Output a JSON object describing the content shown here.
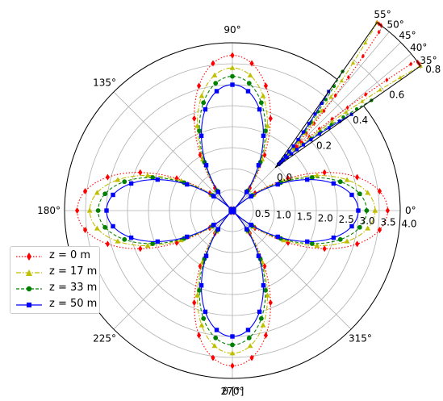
{
  "chart_data": {
    "type": "line",
    "subtype": "polar",
    "xlabel": "θ [°]",
    "theta_ticks": [
      "0°",
      "45°",
      "90°",
      "135°",
      "180°",
      "225°",
      "270°",
      "315°"
    ],
    "r_ticks": [
      "0.0",
      "0.5",
      "1.0",
      "1.5",
      "2.0",
      "2.5",
      "3.0",
      "3.5",
      "4.0"
    ],
    "rlim": [
      0,
      4.0
    ],
    "grid": true,
    "legend_position": "lower-left",
    "series": [
      {
        "name": "z = 0 m",
        "color": "#ff0000",
        "linestyle": "dotted",
        "marker": "diamond",
        "peak": 3.7,
        "mean": 0.05
      },
      {
        "name": "z = 17 m",
        "color": "#bfbf00",
        "linestyle": "dashdot",
        "marker": "triangle",
        "peak": 3.4,
        "mean": 0.05
      },
      {
        "name": "z = 33 m",
        "color": "#008000",
        "linestyle": "dashed",
        "marker": "circle",
        "peak": 3.2,
        "mean": 0.05
      },
      {
        "name": "z = 50 m",
        "color": "#0000ff",
        "linestyle": "solid",
        "marker": "square",
        "peak": 3.0,
        "mean": 0.05
      }
    ],
    "inset": {
      "type": "polar-sector",
      "theta_range": [
        35,
        55
      ],
      "theta_ticks": [
        "35°",
        "40°",
        "45°",
        "50°",
        "55°"
      ],
      "r_ticks": [
        "0.0",
        "0.2",
        "0.4",
        "0.6",
        "0.8"
      ],
      "rlim": [
        0,
        0.8
      ]
    }
  }
}
